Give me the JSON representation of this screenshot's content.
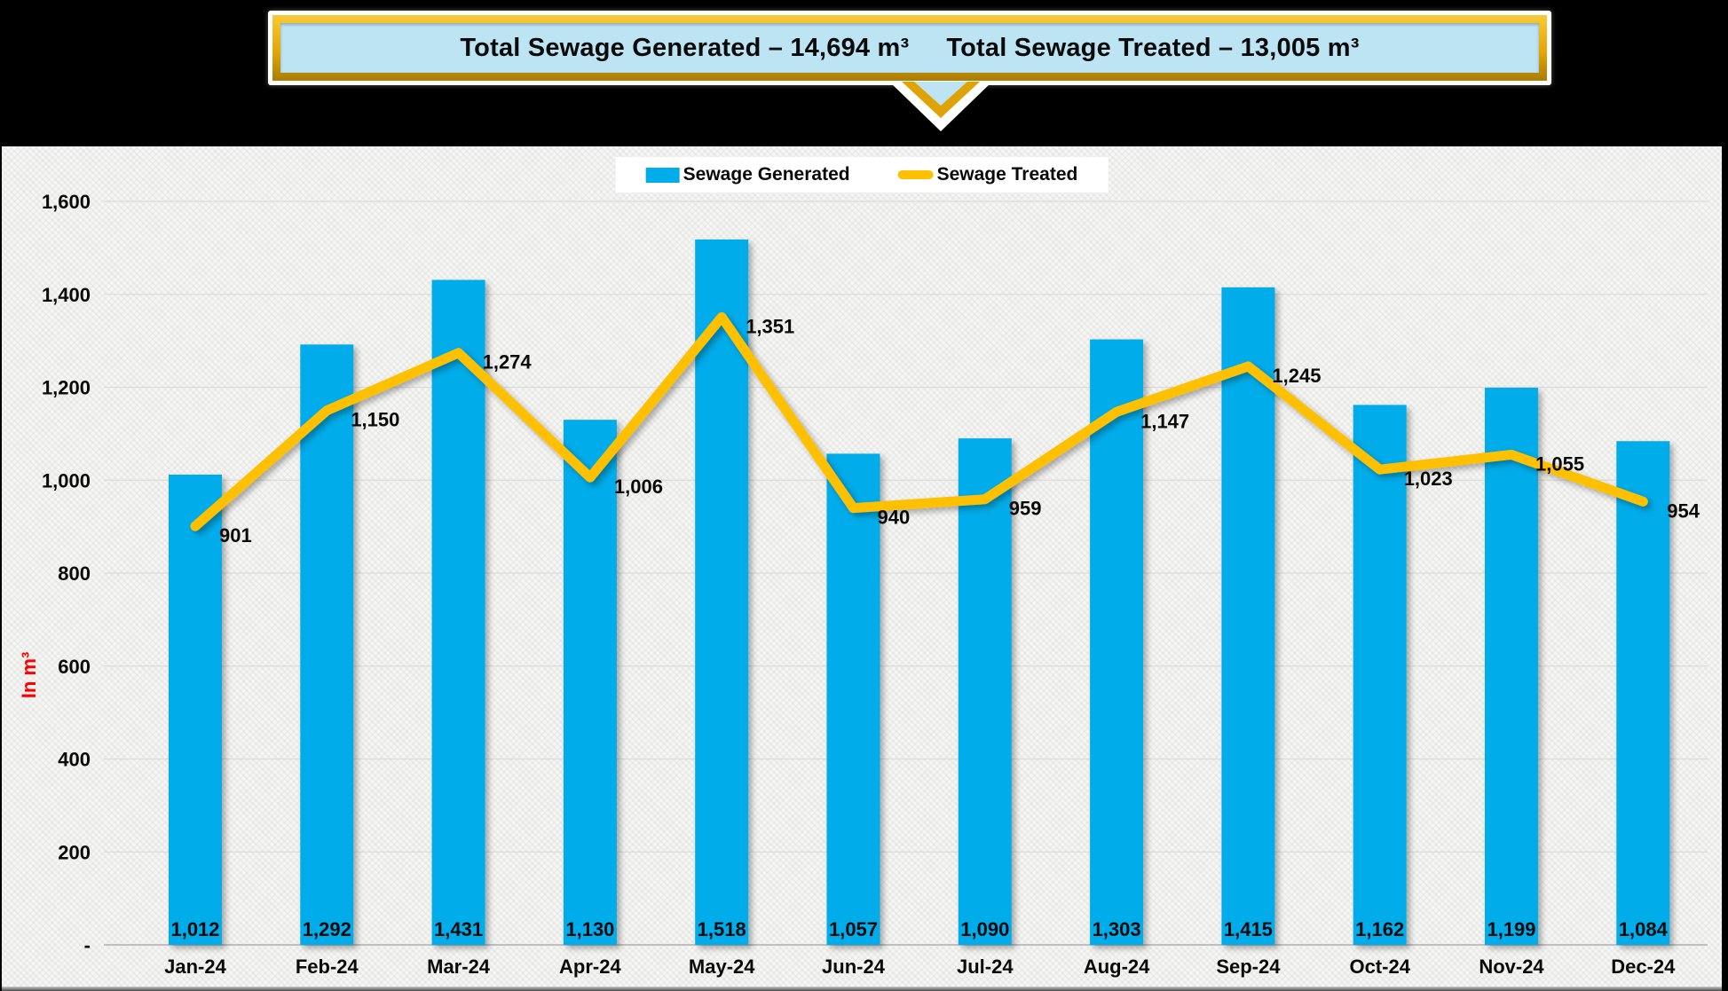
{
  "callout": {
    "title_left": "Total Sewage Generated – 14,694 m³",
    "title_right": "Total Sewage Treated – 13,005 m³"
  },
  "colors": {
    "bar": "#00ACEA",
    "line": "#FFC000",
    "callout_fill": "#BDE4F3",
    "callout_border": "#E3A707",
    "gridline": "#DBDBDB",
    "axis_line": "#BFBFBF",
    "ylabel_red": "#FF0000",
    "header_background": "#000000",
    "panel_background": "#F6F6F4"
  },
  "chart_data": {
    "type": "bar+line",
    "title": "",
    "categories": [
      "Jan-24",
      "Feb-24",
      "Mar-24",
      "Apr-24",
      "May-24",
      "Jun-24",
      "Jul-24",
      "Aug-24",
      "Sep-24",
      "Oct-24",
      "Nov-24",
      "Dec-24"
    ],
    "series": [
      {
        "name": "Sewage Generated",
        "type": "bar",
        "color": "#00ACEA",
        "values": [
          1012,
          1292,
          1431,
          1130,
          1518,
          1057,
          1090,
          1303,
          1415,
          1162,
          1199,
          1084
        ]
      },
      {
        "name": "Sewage Treated",
        "type": "line",
        "color": "#FFC000",
        "values": [
          901,
          1150,
          1274,
          1006,
          1351,
          940,
          959,
          1147,
          1245,
          1023,
          1055,
          954
        ]
      }
    ],
    "xlabel": "",
    "ylabel": "In m³",
    "ylabel_color": "#FF0000",
    "ylim": [
      0,
      1600
    ],
    "ytick_step": 200,
    "zero_tick_label": "-",
    "grid": true,
    "legend_position": "top-center",
    "data_labels": true,
    "value_label_format": "thousands-comma"
  }
}
